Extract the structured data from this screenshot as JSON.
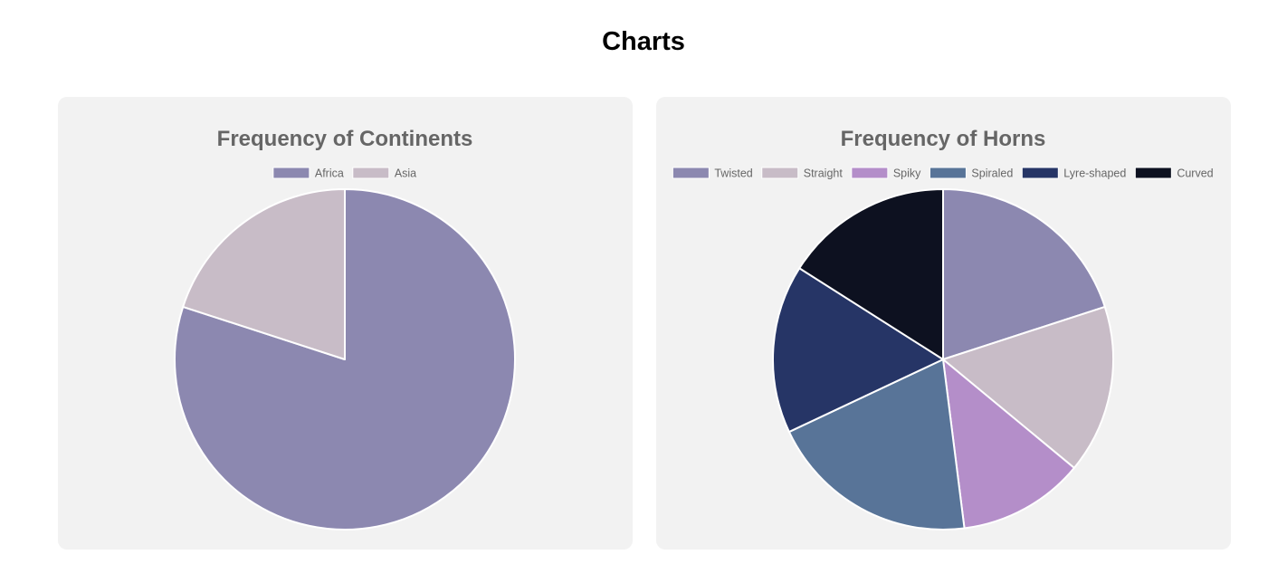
{
  "page": {
    "title": "Charts"
  },
  "chart_data": [
    {
      "type": "pie",
      "title": "Frequency of Continents",
      "categories": [
        "Africa",
        "Asia"
      ],
      "values": [
        8,
        2
      ],
      "colors": [
        "#8c88b0",
        "#c8bcc7"
      ],
      "legend": "top"
    },
    {
      "type": "pie",
      "title": "Frequency of Horns",
      "categories": [
        "Twisted",
        "Straight",
        "Spiky",
        "Spiraled",
        "Lyre-shaped",
        "Curved"
      ],
      "values": [
        5,
        4,
        3,
        5,
        4,
        4
      ],
      "colors": [
        "#8c88b0",
        "#c8bcc7",
        "#b48ec9",
        "#587498",
        "#263566",
        "#0d1120"
      ],
      "legend": "top"
    }
  ]
}
